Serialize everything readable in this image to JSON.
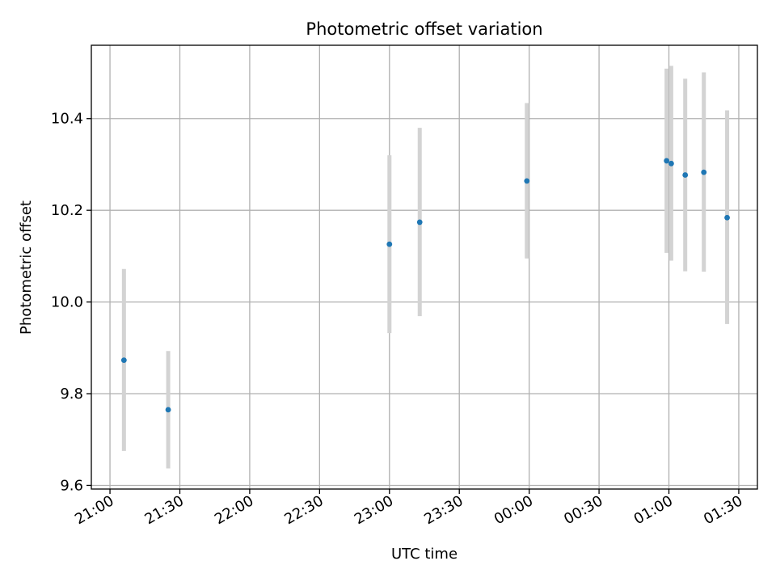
{
  "chart_data": {
    "type": "scatter",
    "title": "Photometric offset variation",
    "xlabel": "UTC time",
    "ylabel": "Photometric offset",
    "x_axis": "time",
    "xlim": [
      "20:52",
      "01:38"
    ],
    "ylim": [
      9.592,
      10.56
    ],
    "grid": true,
    "legend": "none",
    "x_ticks": [
      "21:00",
      "21:30",
      "22:00",
      "22:30",
      "23:00",
      "23:30",
      "00:00",
      "00:30",
      "01:00",
      "01:30"
    ],
    "y_ticks": [
      "9.6",
      "9.8",
      "10.0",
      "10.2",
      "10.4"
    ],
    "y_tick_values": [
      9.6,
      9.8,
      10.0,
      10.2,
      10.4
    ],
    "marker_color": "#1f77b4",
    "errorbar_color": "#d3d3d3",
    "series": [
      {
        "points": [
          {
            "t": "21:06",
            "y": 9.873,
            "y_low": 9.675,
            "y_high": 10.072
          },
          {
            "t": "21:25",
            "y": 9.765,
            "y_low": 9.637,
            "y_high": 9.893
          },
          {
            "t": "23:00",
            "y": 10.126,
            "y_low": 9.932,
            "y_high": 10.32
          },
          {
            "t": "23:13",
            "y": 10.174,
            "y_low": 9.969,
            "y_high": 10.38
          },
          {
            "t": "23:59",
            "y": 10.264,
            "y_low": 10.095,
            "y_high": 10.434
          },
          {
            "t": "00:59",
            "y": 10.308,
            "y_low": 10.107,
            "y_high": 10.509
          },
          {
            "t": "01:01",
            "y": 10.302,
            "y_low": 10.09,
            "y_high": 10.515
          },
          {
            "t": "01:07",
            "y": 10.277,
            "y_low": 10.067,
            "y_high": 10.487
          },
          {
            "t": "01:15",
            "y": 10.283,
            "y_low": 10.066,
            "y_high": 10.501
          },
          {
            "t": "01:25",
            "y": 10.184,
            "y_low": 9.952,
            "y_high": 10.418
          }
        ]
      }
    ]
  }
}
